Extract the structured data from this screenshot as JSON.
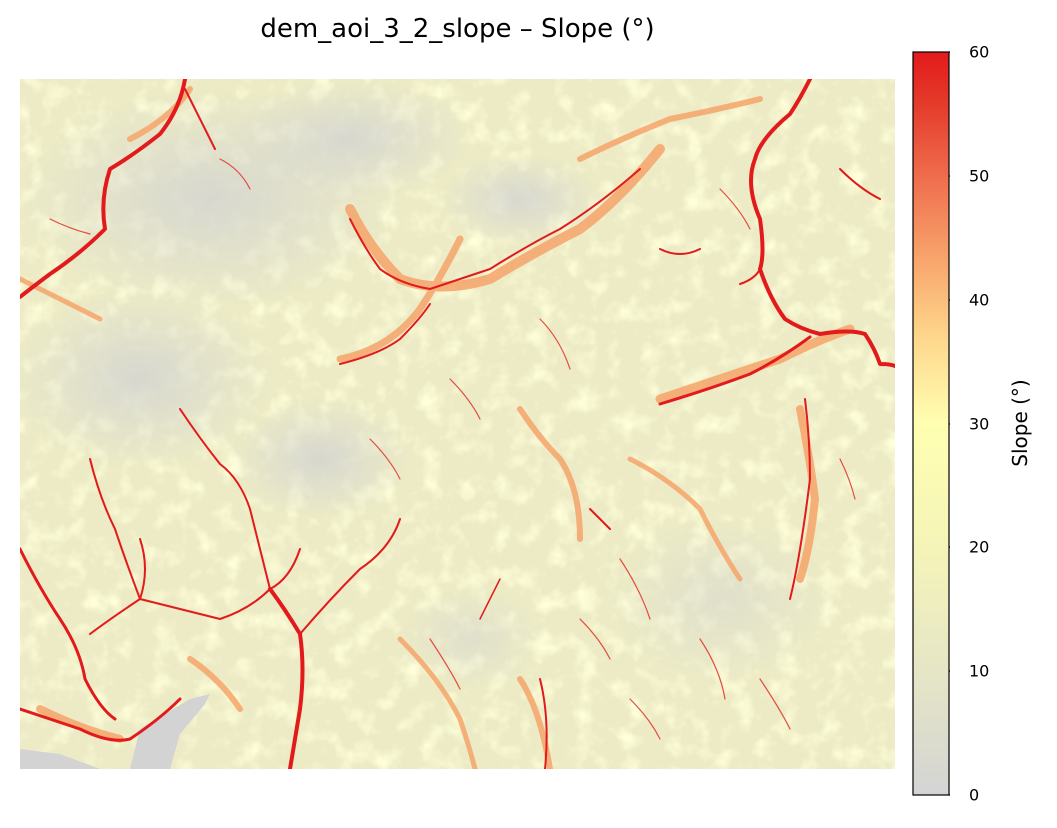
{
  "title": "dem_aoi_3_2_slope – Slope (°)",
  "colorbar": {
    "label": "Slope (°)",
    "min": 0,
    "max": 60,
    "ticks": [
      "0",
      "10",
      "20",
      "30",
      "40",
      "50",
      "60"
    ],
    "colormap": [
      "#d4d4d4",
      "#e8e8c4",
      "#f4f4b4",
      "#ffffb2",
      "#fed58a",
      "#f8a56c",
      "#ee6a4a",
      "#e03127",
      "#e31a1c"
    ]
  },
  "chart_data": {
    "type": "heatmap",
    "title": "dem_aoi_3_2_slope – Slope (°)",
    "colorbar_label": "Slope (°)",
    "value_range": [
      0,
      60
    ],
    "colorbar_ticks": [
      0,
      10,
      20,
      30,
      40,
      50,
      60
    ],
    "axes_visible": false
  }
}
